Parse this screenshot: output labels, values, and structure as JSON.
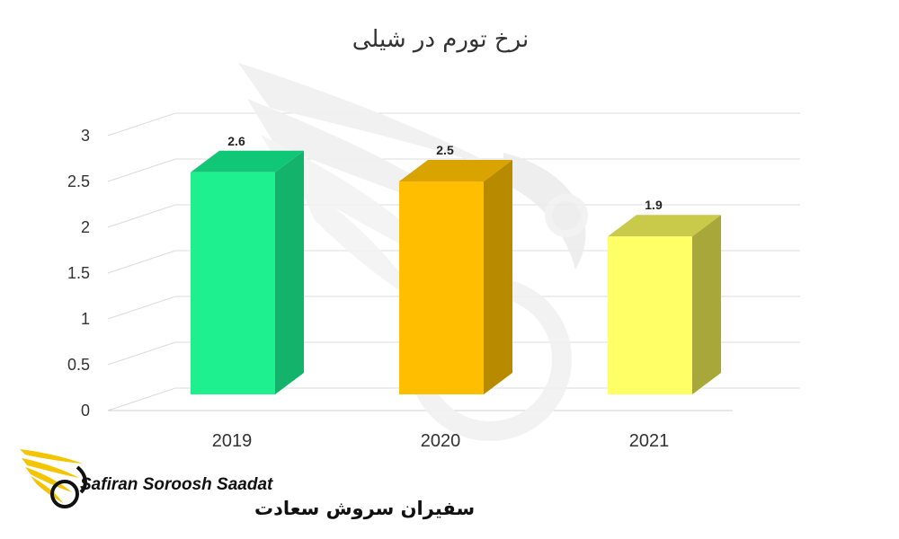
{
  "chart_data": {
    "type": "bar",
    "title": "نرخ تورم در شیلی",
    "categories": [
      "2019",
      "2020",
      "2021"
    ],
    "values": [
      2.6,
      2.5,
      1.9
    ],
    "data_labels": [
      "2.6",
      "2.5",
      "1.9"
    ],
    "y_ticks": [
      "0",
      "0.5",
      "1",
      "1.5",
      "2",
      "2.5",
      "3"
    ],
    "ylim": [
      0,
      3
    ],
    "grid": true,
    "legend": "none",
    "colors": [
      {
        "front": "#1ef08f",
        "side": "#14b36c",
        "top": "#10c777"
      },
      {
        "front": "#ffbf00",
        "side": "#b88a00",
        "top": "#d9a300"
      },
      {
        "front": "#ffff66",
        "side": "#a8a83a",
        "top": "#c9c94a"
      }
    ]
  },
  "logo": {
    "brand_en": "Safiran Soroosh Saadat",
    "brand_fa": "سفیران سروش سعادت",
    "icon": "wing-swirl-logo-icon",
    "color": "#f5c400"
  },
  "watermark": {
    "icon": "wing-swirl-watermark-icon"
  }
}
